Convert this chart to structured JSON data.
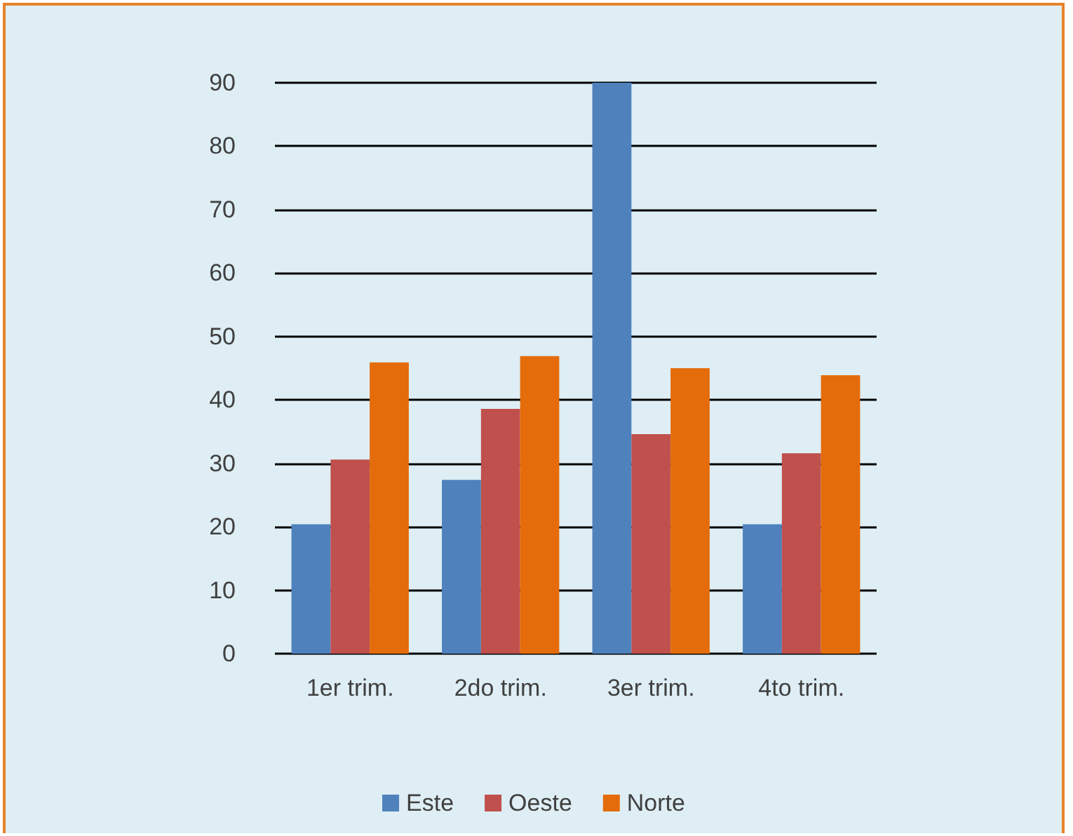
{
  "chart_data": {
    "type": "bar",
    "categories": [
      "1er trim.",
      "2do trim.",
      "3er trim.",
      "4to trim."
    ],
    "series": [
      {
        "name": "Este",
        "color": "#4f81bd",
        "values": [
          20.4,
          27.4,
          90,
          20.4
        ]
      },
      {
        "name": "Oeste",
        "color": "#c0504d",
        "values": [
          30.6,
          38.6,
          34.6,
          31.6
        ]
      },
      {
        "name": "Norte",
        "color": "#e46c0a",
        "values": [
          45.9,
          46.9,
          45,
          43.9
        ]
      }
    ],
    "ylim": [
      0,
      90
    ],
    "yticks": [
      0,
      10,
      20,
      30,
      40,
      50,
      60,
      70,
      80,
      90
    ],
    "grid": "y",
    "legend": "bottom"
  }
}
